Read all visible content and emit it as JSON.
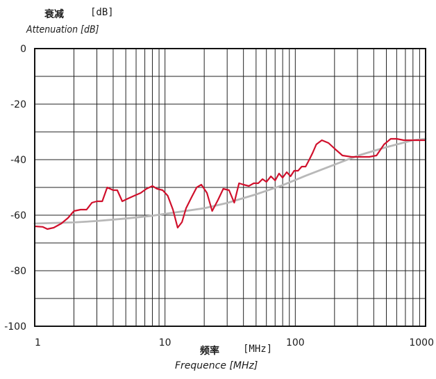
{
  "chart_data": {
    "type": "line",
    "title": "",
    "ylabel_cn": "衰减",
    "ylabel_unit": "[dB]",
    "ylabel_en": "Attenuation [dB]",
    "xlabel_cn": "频率",
    "xlabel_unit": "[MHz]",
    "xlabel_en": "Frequence [MHz]",
    "xscale": "log",
    "xlim": [
      1,
      1000
    ],
    "ylim": [
      -100,
      0
    ],
    "xticks": [
      1,
      10,
      100,
      1000
    ],
    "xtick_labels": [
      "1",
      "10",
      "100",
      "1000"
    ],
    "yticks": [
      0,
      -20,
      -40,
      -60,
      -80,
      -100
    ],
    "ytick_labels": [
      "0",
      "-20",
      "-40",
      "-60",
      "-80",
      "-100"
    ],
    "grid": true,
    "series": [
      {
        "color": "#d0102c",
        "x": [
          1,
          1.15,
          1.25,
          1.4,
          1.6,
          1.8,
          2.0,
          2.25,
          2.5,
          2.75,
          3.0,
          3.3,
          3.6,
          4.0,
          4.3,
          4.7,
          5.2,
          5.8,
          6.5,
          7.2,
          8.0,
          8.7,
          9.6,
          10.5,
          11.5,
          12.5,
          13.5,
          14.5,
          16,
          17.5,
          19,
          21,
          23,
          25.5,
          28,
          31,
          34,
          37,
          40,
          44,
          48,
          52,
          56,
          60,
          65,
          70,
          75,
          80,
          86,
          92,
          98,
          105,
          112,
          120,
          128,
          136,
          145,
          160,
          180,
          200,
          230,
          270,
          320,
          370,
          420,
          480,
          540,
          600,
          680,
          760,
          840,
          920,
          1000
        ],
        "y": [
          -64,
          -64.2,
          -65,
          -64.5,
          -63,
          -61,
          -58.5,
          -58,
          -58,
          -55.5,
          -55,
          -55,
          -50,
          -51,
          -51,
          -55,
          -54,
          -53,
          -52,
          -50.5,
          -49.5,
          -50.5,
          -51,
          -53,
          -58,
          -64.5,
          -62.5,
          -57.5,
          -53.5,
          -50,
          -49,
          -52,
          -58.5,
          -54.5,
          -50.5,
          -51,
          -55.5,
          -48.5,
          -49,
          -49.5,
          -48.5,
          -48.5,
          -47,
          -48,
          -46,
          -47.5,
          -45,
          -46.5,
          -44.5,
          -46,
          -44,
          -44,
          -42.5,
          -42.5,
          -40,
          -37.5,
          -34.5,
          -33,
          -34,
          -36,
          -38.5,
          -39,
          -39,
          -39,
          -38.5,
          -34.5,
          -32.5,
          -32.5,
          -33,
          -33,
          -33,
          -33,
          -33
        ]
      },
      {
        "color": "#b8b8b8",
        "x": [
          1,
          2,
          3,
          5,
          8,
          12,
          20,
          30,
          50,
          80,
          120,
          200,
          300,
          500,
          800,
          1000
        ],
        "y": [
          -63,
          -62.6,
          -62.1,
          -61.2,
          -60.2,
          -59,
          -57.5,
          -55.6,
          -52.5,
          -49.2,
          -45.8,
          -41.8,
          -38.6,
          -35.5,
          -33,
          -32.5
        ]
      }
    ]
  }
}
